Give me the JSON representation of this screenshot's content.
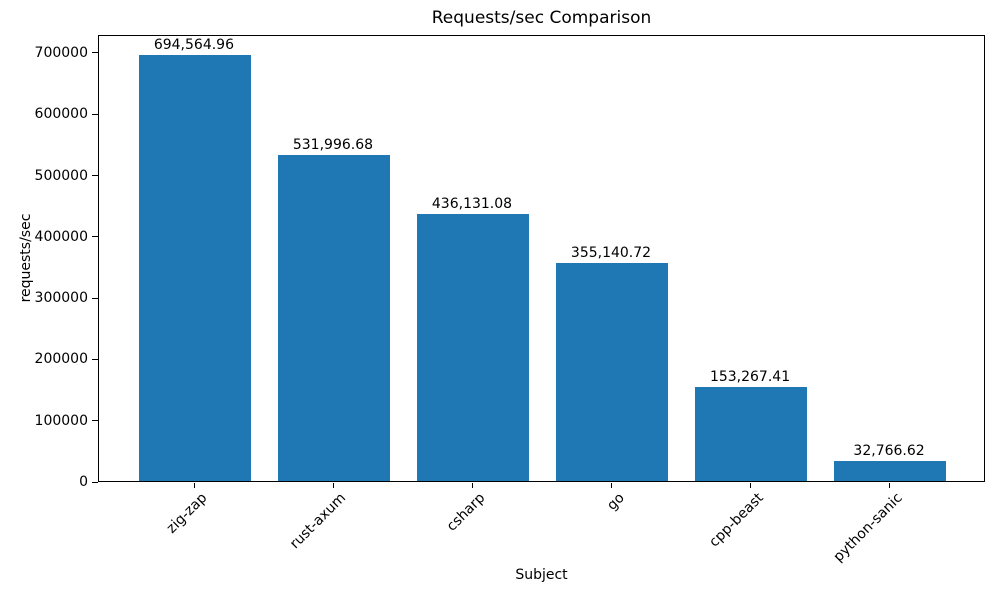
{
  "chart_data": {
    "type": "bar",
    "title": "Requests/sec Comparison",
    "xlabel": "Subject",
    "ylabel": "requests/sec",
    "categories": [
      "zig-zap",
      "rust-axum",
      "csharp",
      "go",
      "cpp-beast",
      "python-sanic"
    ],
    "values": [
      694564.96,
      531996.68,
      436131.08,
      355140.72,
      153267.41,
      32766.62
    ],
    "value_labels": [
      "694,564.96",
      "531,996.68",
      "436,131.08",
      "355,140.72",
      "153,267.41",
      "32,766.62"
    ],
    "yticks": [
      0,
      100000,
      200000,
      300000,
      400000,
      500000,
      600000,
      700000
    ],
    "ylim": [
      0,
      729293
    ],
    "bar_color": "#1f77b4",
    "axis_color": "#000000",
    "background_color": "#ffffff",
    "grid": false,
    "legend": null,
    "x_tick_rotation_deg": 45
  }
}
